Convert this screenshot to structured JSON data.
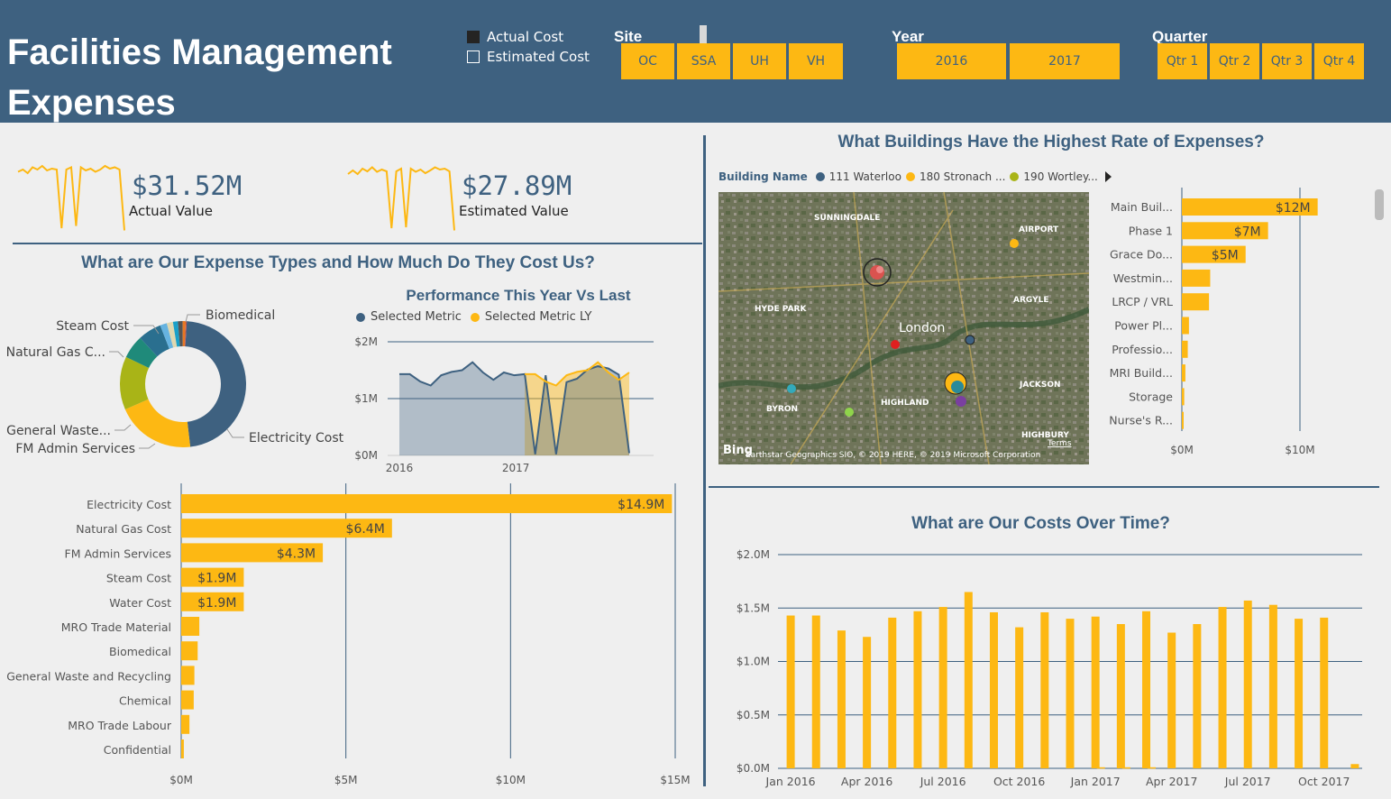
{
  "header": {
    "title": "Facilities Management Expenses",
    "legend": [
      {
        "label": "Actual Cost",
        "style": "filled",
        "color": "#252423"
      },
      {
        "label": "Estimated Cost",
        "style": "outline",
        "color": "#ffffff"
      }
    ],
    "site": {
      "label": "Site",
      "options": [
        "OC",
        "SSA",
        "UH",
        "VH"
      ]
    },
    "year": {
      "label": "Year",
      "options": [
        "2016",
        "2017"
      ]
    },
    "quarter": {
      "label": "Quarter",
      "options": [
        "Qtr 1",
        "Qtr 2",
        "Qtr 3",
        "Qtr 4"
      ]
    }
  },
  "colors": {
    "primary": "#3e6180",
    "accent": "#fdb813",
    "background": "#efefef"
  },
  "kpis": [
    {
      "value": "$31.52M",
      "label": "Actual Value"
    },
    {
      "value": "$27.89M",
      "label": "Estimated Value"
    }
  ],
  "sections": {
    "expense_types": "What are Our Expense Types and How Much Do They Cost Us?",
    "buildings": "What Buildings Have the Highest Rate of Expenses?",
    "costs_over_time": "What are Our Costs Over Time?"
  },
  "map": {
    "legend_title": "Building Name",
    "legend_items": [
      {
        "label": "111 Waterloo",
        "color": "#3e6180"
      },
      {
        "label": "180 Stronach ...",
        "color": "#fdb813"
      },
      {
        "label": "190 Wortley...",
        "color": "#a9b417"
      }
    ],
    "labels": [
      "SUNNINGDALE",
      "AIRPORT",
      "HYDE PARK",
      "ARGYLE",
      "London",
      "BYRON",
      "HIGHLAND",
      "JACKSON",
      "HIGHBURY"
    ],
    "bing": "Bing",
    "terms": "Terms",
    "attribution": "Earthstar Geographics SIO, © 2019 HERE, © 2019 Microsoft Corporation"
  },
  "chart_data": [
    {
      "id": "kpi_actual_sparkline",
      "type": "line",
      "values": [
        1.35,
        1.4,
        1.32,
        1.45,
        1.4,
        1.48,
        1.38,
        1.42,
        1.4,
        0.1,
        1.4,
        1.45,
        0.15,
        1.45,
        1.38,
        1.42,
        1.35,
        1.4,
        1.48,
        1.42,
        1.45,
        1.4,
        0.05
      ]
    },
    {
      "id": "kpi_estimated_sparkline",
      "type": "line",
      "values": [
        1.3,
        1.38,
        1.3,
        1.42,
        1.36,
        1.45,
        1.35,
        1.4,
        1.36,
        0.1,
        1.36,
        1.42,
        0.12,
        1.42,
        1.35,
        1.4,
        1.32,
        1.38,
        1.45,
        1.4,
        1.42,
        1.36,
        0.05
      ]
    },
    {
      "id": "donut",
      "type": "pie",
      "style": "donut",
      "slices": [
        {
          "label": "Electricity Cost",
          "value": 14.9,
          "color": "#3e6180"
        },
        {
          "label": "Natural Gas Cost",
          "value": 6.4,
          "color": "#fdb813"
        },
        {
          "label": "FM Admin Services",
          "value": 4.3,
          "color": "#a9b417"
        },
        {
          "label": "Steam Cost",
          "value": 1.9,
          "color": "#1f8a7a"
        },
        {
          "label": "Water Cost",
          "value": 1.9,
          "color": "#2a6f8f"
        },
        {
          "label": "MRO Trade Material",
          "value": 0.55,
          "color": "#66b3e0"
        },
        {
          "label": "Biomedical",
          "value": 0.5,
          "color": "#e0d8b0"
        },
        {
          "label": "General Waste and Recycling",
          "value": 0.4,
          "color": "#1aa0c8"
        },
        {
          "label": "Chemical",
          "value": 0.38,
          "color": "#555555"
        },
        {
          "label": "MRO Trade Labour",
          "value": 0.25,
          "color": "#e87722"
        },
        {
          "label": "Confidential",
          "value": 0.08,
          "color": "#c0504d"
        }
      ],
      "callouts": [
        "Steam Cost",
        "Biomedical",
        "Natural Gas C...",
        "General Waste...",
        "FM Admin Services",
        "Electricity Cost"
      ]
    },
    {
      "id": "performance",
      "type": "area",
      "title": "Performance This Year Vs Last",
      "series": [
        {
          "name": "Selected Metric",
          "color": "#3e6180",
          "values": [
            1.43,
            1.43,
            1.3,
            1.23,
            1.41,
            1.47,
            1.5,
            1.64,
            1.46,
            1.33,
            1.46,
            1.41,
            1.43,
            0.02,
            1.41,
            0.02,
            1.29,
            1.35,
            1.51,
            1.57,
            1.53,
            1.42,
            0.04
          ]
        },
        {
          "name": "Selected Metric LY",
          "color": "#fdb813",
          "values": [
            null,
            null,
            null,
            null,
            null,
            null,
            null,
            null,
            null,
            null,
            null,
            null,
            1.43,
            1.43,
            1.3,
            1.23,
            1.41,
            1.47,
            1.5,
            1.64,
            1.46,
            1.33,
            1.46
          ]
        }
      ],
      "x_ticks": [
        "2016",
        "2017"
      ],
      "y_ticks": [
        "$0M",
        "$1M",
        "$2M"
      ],
      "ylim": [
        0,
        2
      ]
    },
    {
      "id": "expense_bar",
      "type": "bar",
      "orientation": "horizontal",
      "categories": [
        "Electricity Cost",
        "Natural Gas Cost",
        "FM Admin Services",
        "Steam Cost",
        "Water Cost",
        "MRO Trade Material",
        "Biomedical",
        "General Waste and Recycling",
        "Chemical",
        "MRO Trade Labour",
        "Confidential"
      ],
      "values": [
        14.9,
        6.4,
        4.3,
        1.9,
        1.9,
        0.55,
        0.5,
        0.4,
        0.38,
        0.25,
        0.08
      ],
      "data_labels": [
        "$14.9M",
        "$6.4M",
        "$4.3M",
        "$1.9M",
        "$1.9M",
        "",
        "",
        "",
        "",
        "",
        ""
      ],
      "x_ticks": [
        "$0M",
        "$5M",
        "$10M",
        "$15M"
      ],
      "xlim": [
        0,
        15
      ]
    },
    {
      "id": "building_bar",
      "type": "bar",
      "orientation": "horizontal",
      "categories": [
        "Main Buil...",
        "Phase 1",
        "Grace Do...",
        "Westmin...",
        "LRCP / VRL",
        "Power Pl...",
        "Professio...",
        "MRI Build...",
        "Storage",
        "Nurse's R..."
      ],
      "values": [
        11.5,
        7.3,
        5.4,
        2.4,
        2.3,
        0.6,
        0.5,
        0.3,
        0.2,
        0.15
      ],
      "data_labels": [
        "$12M",
        "$7M",
        "$5M",
        "",
        "",
        "",
        "",
        "",
        "",
        ""
      ],
      "x_ticks": [
        "$0M",
        "$10M"
      ],
      "xlim": [
        0,
        16
      ]
    },
    {
      "id": "costs_over_time",
      "type": "bar",
      "x": [
        "Jan 2016",
        "Feb 2016",
        "Mar 2016",
        "Apr 2016",
        "May 2016",
        "Jun 2016",
        "Jul 2016",
        "Aug 2016",
        "Sep 2016",
        "Oct 2016",
        "Nov 2016",
        "Dec 2016",
        "Jan 2017",
        "Feb 2017",
        "Mar 2017",
        "Apr 2017",
        "May 2017",
        "Jun 2017",
        "Jul 2017",
        "Aug 2017",
        "Sep 2017",
        "Oct 2017",
        "Nov 2017"
      ],
      "series": [
        {
          "values": [
            1.43,
            1.43,
            1.29,
            1.23,
            1.41,
            1.47,
            1.51,
            1.65,
            1.46,
            1.32,
            1.46,
            1.4,
            1.42,
            1.35,
            1.47,
            1.27,
            1.35,
            1.51,
            1.57,
            1.53,
            1.4,
            1.41,
            null
          ]
        },
        {
          "values": [
            null,
            null,
            null,
            null,
            null,
            null,
            null,
            null,
            null,
            null,
            null,
            null,
            0.01,
            0.01,
            0.01,
            null,
            null,
            null,
            null,
            null,
            null,
            null,
            0.04
          ]
        }
      ],
      "x_ticks": [
        "Jan 2016",
        "Apr 2016",
        "Jul 2016",
        "Oct 2016",
        "Jan 2017",
        "Apr 2017",
        "Jul 2017",
        "Oct 2017"
      ],
      "y_ticks": [
        "$0.0M",
        "$0.5M",
        "$1.0M",
        "$1.5M",
        "$2.0M"
      ],
      "ylim": [
        0,
        2
      ]
    }
  ]
}
